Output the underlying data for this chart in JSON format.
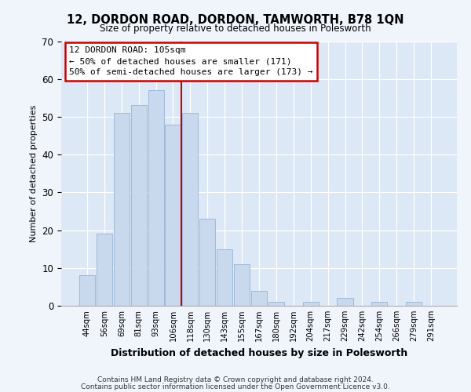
{
  "title": "12, DORDON ROAD, DORDON, TAMWORTH, B78 1QN",
  "subtitle": "Size of property relative to detached houses in Polesworth",
  "xlabel": "Distribution of detached houses by size in Polesworth",
  "ylabel": "Number of detached properties",
  "bar_labels": [
    "44sqm",
    "56sqm",
    "69sqm",
    "81sqm",
    "93sqm",
    "106sqm",
    "118sqm",
    "130sqm",
    "143sqm",
    "155sqm",
    "167sqm",
    "180sqm",
    "192sqm",
    "204sqm",
    "217sqm",
    "229sqm",
    "242sqm",
    "254sqm",
    "266sqm",
    "279sqm",
    "291sqm"
  ],
  "bar_values": [
    8,
    19,
    51,
    53,
    57,
    48,
    51,
    23,
    15,
    11,
    4,
    1,
    0,
    1,
    0,
    2,
    0,
    1,
    0,
    1,
    0
  ],
  "bar_color": "#c9d9ed",
  "bar_edge_color": "#a0b8d8",
  "vline_x": 5.5,
  "vline_color": "#cc0000",
  "ylim": [
    0,
    70
  ],
  "yticks": [
    0,
    10,
    20,
    30,
    40,
    50,
    60,
    70
  ],
  "annotation_line1": "12 DORDON ROAD: 105sqm",
  "annotation_line2": "← 50% of detached houses are smaller (171)",
  "annotation_line3": "50% of semi-detached houses are larger (173) →",
  "annotation_box_edge_color": "#cc0000",
  "footer_line1": "Contains HM Land Registry data © Crown copyright and database right 2024.",
  "footer_line2": "Contains public sector information licensed under the Open Government Licence v3.0.",
  "background_color": "#f0f4fb",
  "plot_background_color": "#dce8f5"
}
